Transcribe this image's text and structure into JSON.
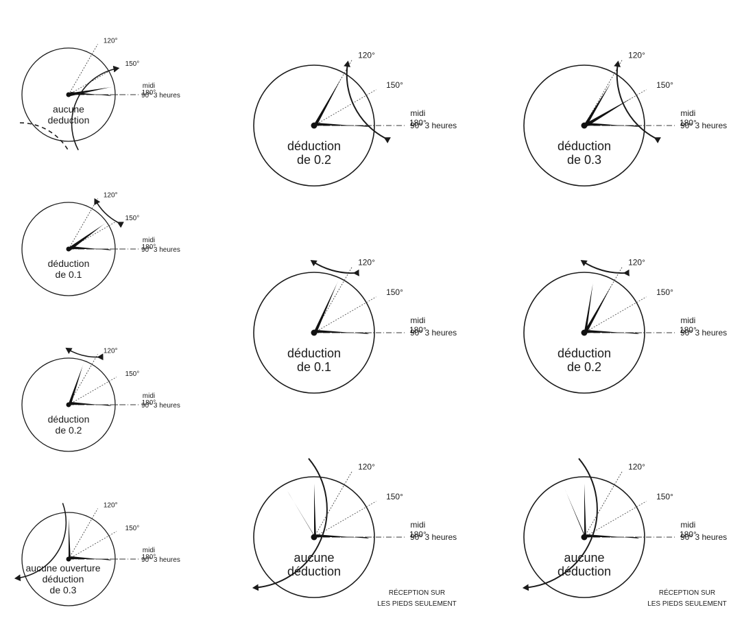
{
  "labels": {
    "midi": "midi",
    "deg180": "180°",
    "deg150": "150°",
    "deg120": "120°",
    "deg90": "90°",
    "trois_heures": "3 heures",
    "reception": "RÉCEPTION SUR",
    "pieds": "LES PIEDS SEULEMENT"
  },
  "diagrams": [
    {
      "id": "d1",
      "caption": [
        "aucune",
        "deduction"
      ],
      "body_angle": 170
    },
    {
      "id": "d2",
      "caption": [
        "déduction",
        "de 0.1"
      ],
      "body_angle": 145
    },
    {
      "id": "d3",
      "caption": [
        "déduction",
        "de 0.2"
      ],
      "body_angle": 110
    },
    {
      "id": "d4",
      "caption": [
        "aucune ouverture",
        "déduction",
        "de 0.3"
      ],
      "body_angle": 90
    },
    {
      "id": "d5",
      "caption": [
        "déduction",
        "de 0.2"
      ],
      "body_angle": 120
    },
    {
      "id": "d6",
      "caption": [
        "déduction",
        "de 0.3"
      ],
      "body_angle": 145
    },
    {
      "id": "d7",
      "caption": [
        "déduction",
        "de 0.1"
      ],
      "body_angle": 115
    },
    {
      "id": "d8",
      "caption": [
        "déduction",
        "de 0.2"
      ],
      "body_angle": 115
    },
    {
      "id": "d9",
      "caption": [
        "aucune",
        "déduction"
      ],
      "body_angle": 88
    },
    {
      "id": "d10",
      "caption": [
        "aucune",
        "déduction"
      ],
      "body_angle": 88
    }
  ]
}
